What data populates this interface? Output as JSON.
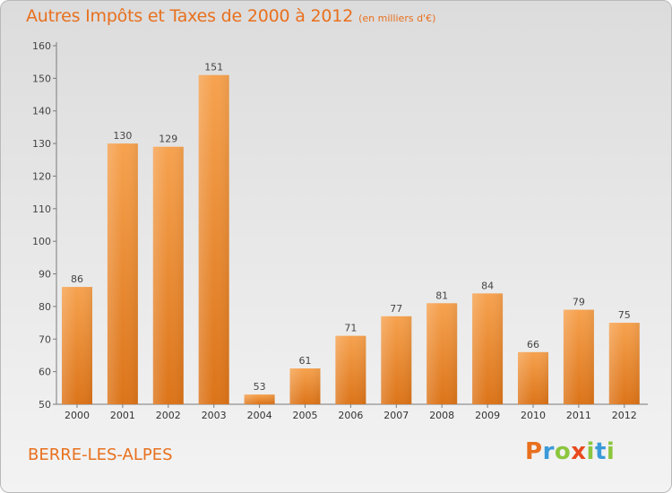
{
  "header": {
    "title": "Autres Impôts et Taxes de 2000 à 2012",
    "subtitle": "(en milliers d'€)"
  },
  "footer": {
    "commune": "BERRE-LES-ALPES",
    "logo_text": "Proxiti"
  },
  "colors": {
    "accent": "#e8701e",
    "bar_light": "#f6a24f",
    "bar_dark": "#dc7419",
    "logo": [
      "#e8701e",
      "#3a9ad9",
      "#8cc63f",
      "#e84a1e",
      "#8cc63f",
      "#3a9ad9",
      "#8cc63f"
    ]
  },
  "chart_data": {
    "type": "bar",
    "title": "Autres Impôts et Taxes de 2000 à 2012",
    "subtitle": "(en milliers d'€)",
    "categories": [
      "2000",
      "2001",
      "2002",
      "2003",
      "2004",
      "2005",
      "2006",
      "2007",
      "2008",
      "2009",
      "2010",
      "2011",
      "2012"
    ],
    "values": [
      86,
      130,
      129,
      151,
      53,
      61,
      71,
      77,
      81,
      84,
      66,
      79,
      75
    ],
    "ylim": [
      50,
      160
    ],
    "yticks": [
      50,
      60,
      70,
      80,
      90,
      100,
      110,
      120,
      130,
      140,
      150,
      160
    ],
    "grid": false,
    "data_labels": true
  }
}
